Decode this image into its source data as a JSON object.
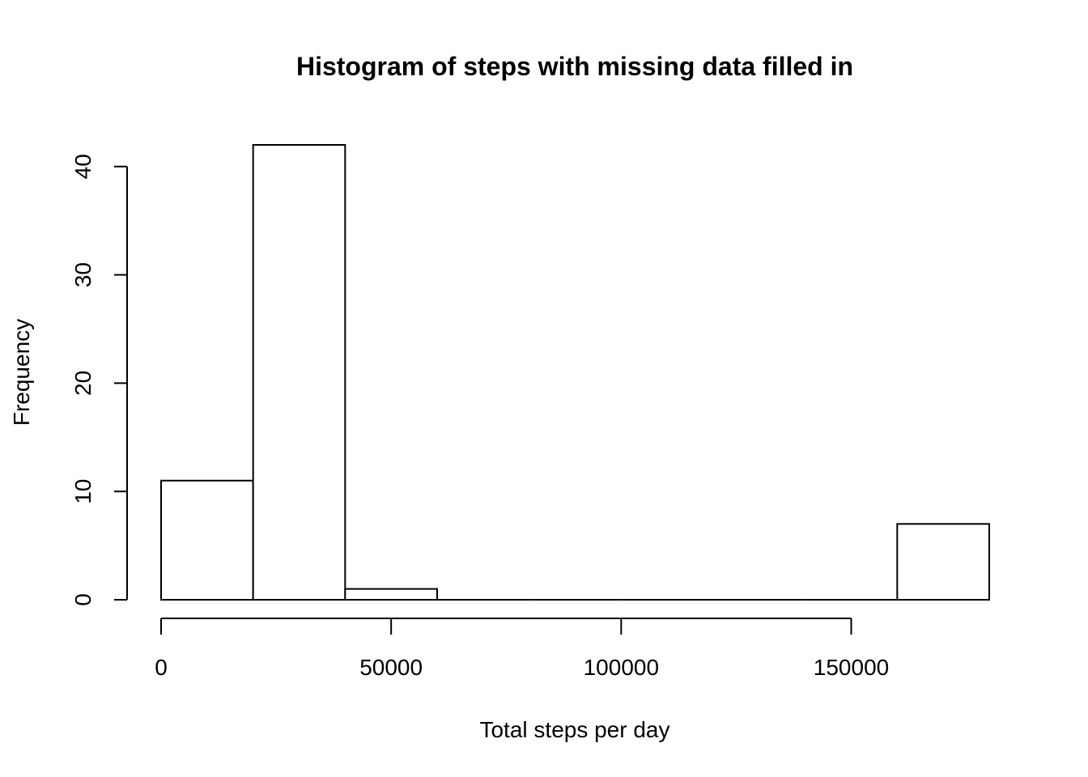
{
  "chart_data": {
    "type": "bar",
    "title": "Histogram of steps with missing data filled in",
    "xlabel": "Total steps per day",
    "ylabel": "Frequency",
    "bins": [
      {
        "start": 0,
        "end": 20000,
        "count": 11
      },
      {
        "start": 20000,
        "end": 40000,
        "count": 42
      },
      {
        "start": 40000,
        "end": 60000,
        "count": 1
      },
      {
        "start": 60000,
        "end": 80000,
        "count": 0
      },
      {
        "start": 80000,
        "end": 100000,
        "count": 0
      },
      {
        "start": 100000,
        "end": 120000,
        "count": 0
      },
      {
        "start": 120000,
        "end": 140000,
        "count": 0
      },
      {
        "start": 140000,
        "end": 160000,
        "count": 0
      },
      {
        "start": 160000,
        "end": 180000,
        "count": 7
      }
    ],
    "xticks": [
      0,
      50000,
      100000,
      150000
    ],
    "xtick_labels": [
      "0",
      "50000",
      "100000",
      "150000"
    ],
    "yticks": [
      0,
      10,
      20,
      30,
      40
    ],
    "ytick_labels": [
      "0",
      "10",
      "20",
      "30",
      "40"
    ],
    "xlim": [
      0,
      180000
    ],
    "ylim": [
      0,
      42
    ],
    "grid": false,
    "bar_fill": "#ffffff",
    "bar_stroke": "#000000"
  }
}
